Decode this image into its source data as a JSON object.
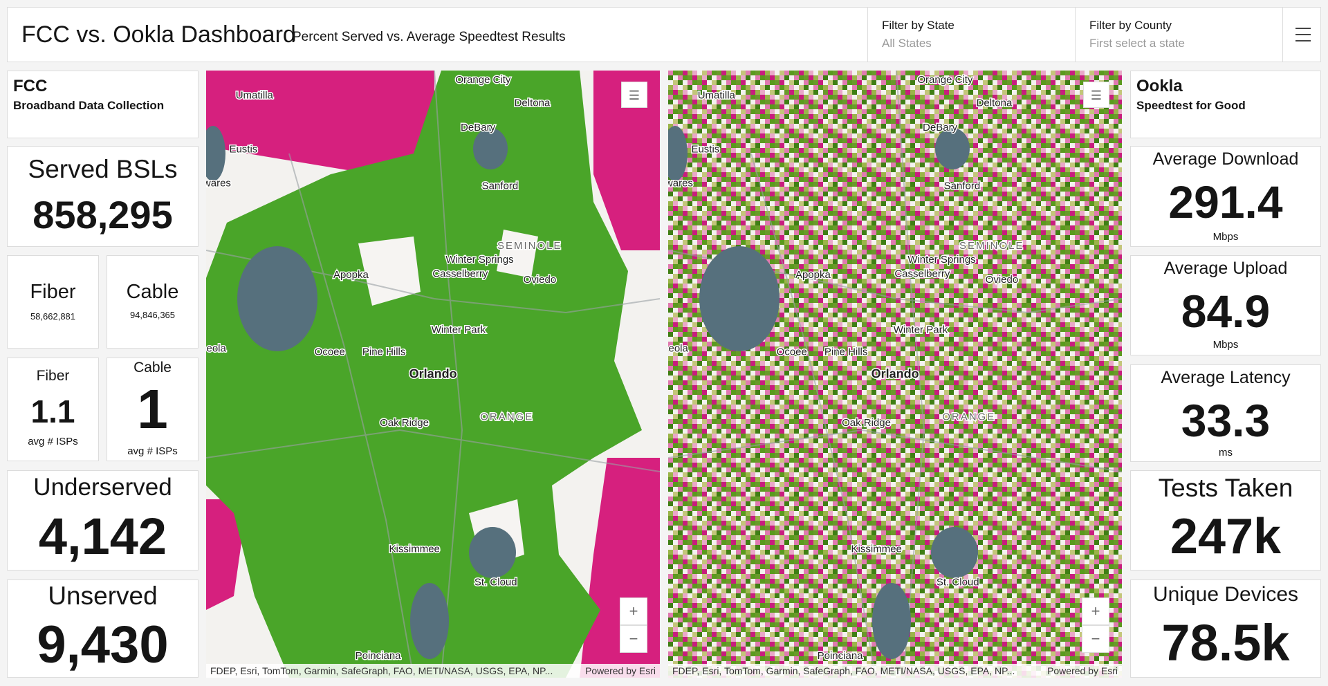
{
  "header": {
    "title": "FCC vs. Ookla Dashboard",
    "subtitle": "Percent Served vs. Average Speedtest Results",
    "filters": [
      {
        "label": "Filter by State",
        "value": "All States"
      },
      {
        "label": "Filter by County",
        "value": "First select a state"
      }
    ]
  },
  "fcc": {
    "title": "FCC",
    "subtitle": "Broadband Data Collection",
    "served": {
      "label": "Served BSLs",
      "value": "858,295"
    },
    "fiber_locations": {
      "label": "Fiber",
      "value": "58,662,881"
    },
    "cable_locations": {
      "label": "Cable",
      "value": "94,846,365"
    },
    "fiber_isps": {
      "label": "Fiber",
      "value": "1.1",
      "unit": "avg # ISPs"
    },
    "cable_isps": {
      "label": "Cable",
      "value": "1",
      "unit": "avg # ISPs"
    },
    "underserved": {
      "label": "Underserved",
      "value": "4,142"
    },
    "unserved": {
      "label": "Unserved",
      "value": "9,430"
    }
  },
  "ookla": {
    "title": "Ookla",
    "subtitle": "Speedtest for Good",
    "download": {
      "label": "Average Download",
      "value": "291.4",
      "unit": "Mbps"
    },
    "upload": {
      "label": "Average Upload",
      "value": "84.9",
      "unit": "Mbps"
    },
    "latency": {
      "label": "Average Latency",
      "value": "33.3",
      "unit": "ms"
    },
    "tests": {
      "label": "Tests Taken",
      "value": "247k"
    },
    "devices": {
      "label": "Unique Devices",
      "value": "78.5k"
    }
  },
  "map": {
    "labels": [
      "Orange City",
      "Deltona",
      "Umatilla",
      "DeBary",
      "Eustis",
      "Sanford",
      "SEMINOLE",
      "Winter Springs",
      "Apopka",
      "Casselberry",
      "Oviedo",
      "Winter Park",
      "Ocoee",
      "Pine Hills",
      "Orlando",
      "Oak Ridge",
      "ORANGE",
      "Kissimmee",
      "St. Cloud",
      "Poinciana",
      "wares",
      "eola"
    ],
    "attribution": "FDEP, Esri, TomTom, Garmin, SafeGraph, FAO, METI/NASA, USGS, EPA, NP...",
    "powered_by": "Powered by Esri"
  }
}
